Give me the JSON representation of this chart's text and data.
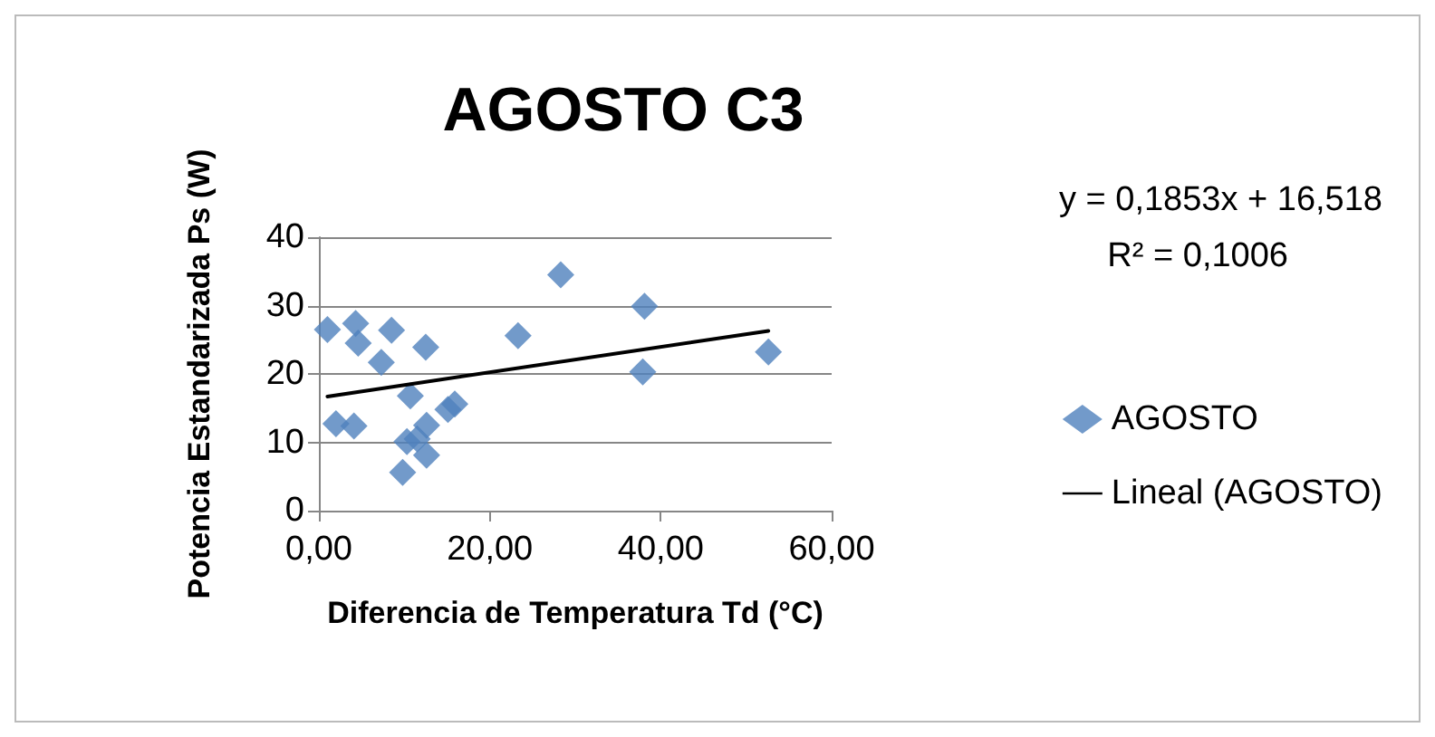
{
  "chart_data": {
    "type": "scatter",
    "title": "AGOSTO C3",
    "xlabel": "Diferencia de Temperatura Td (°C)",
    "ylabel": "Potencia Estandarizada Ps (W)",
    "annotations": [
      "y = 0,1853x + 16,518",
      "R² = 0,1006"
    ],
    "series": [
      {
        "name": "AGOSTO",
        "color": "#4f81bd",
        "marker": "diamond",
        "x": [
          1.0,
          2.0,
          4.1,
          4.3,
          4.6,
          7.3,
          8.5,
          12.5,
          10.7,
          10.3,
          9.8,
          12.6,
          12.6,
          11.5,
          15.1,
          15.9,
          23.3,
          28.3,
          38.1,
          37.9,
          52.6
        ],
        "values": [
          26.5,
          12.7,
          12.4,
          27.4,
          24.5,
          21.7,
          26.4,
          23.9,
          16.8,
          10.1,
          5.6,
          12.5,
          8.1,
          10.5,
          14.8,
          15.6,
          25.6,
          34.5,
          29.9,
          20.3,
          23.2
        ]
      },
      {
        "name": "Lineal (AGOSTO)",
        "type": "line",
        "color": "#000000",
        "marker": "none",
        "line_style": "solid",
        "x": [
          1.0,
          52.6
        ],
        "values": [
          16.7,
          26.3
        ]
      }
    ],
    "xlim": [
      0,
      60
    ],
    "xticks": [
      {
        "value": 0,
        "label": "0,00"
      },
      {
        "value": 20,
        "label": "20,00"
      },
      {
        "value": 40,
        "label": "40,00"
      },
      {
        "value": 60,
        "label": "60,00"
      }
    ],
    "ylim": [
      0,
      40
    ],
    "yticks": [
      0,
      10,
      20,
      30,
      40
    ],
    "grid": "y",
    "legend": "right"
  }
}
